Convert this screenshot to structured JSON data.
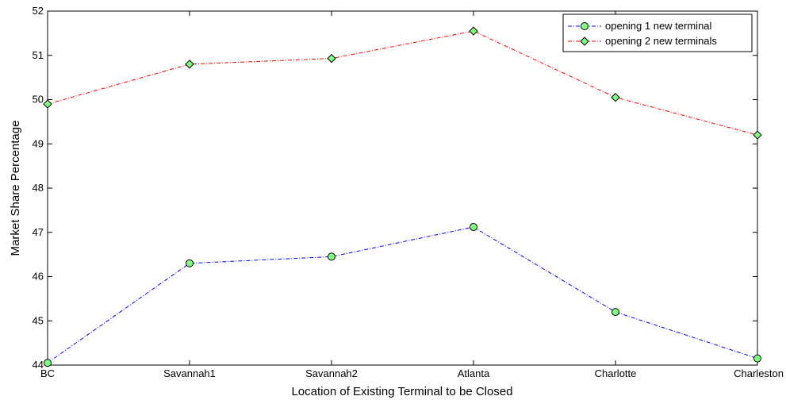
{
  "chart_data": {
    "type": "line",
    "title": "",
    "xlabel": "Location of Existing Terminal to be Closed",
    "ylabel": "Market Share Percentage",
    "categories": [
      "BC",
      "Savannah1",
      "Savannah2",
      "Atlanta",
      "Charlotte",
      "Charleston"
    ],
    "ylim": [
      44,
      52
    ],
    "yticks": [
      "44",
      "45",
      "46",
      "47",
      "48",
      "49",
      "50",
      "51",
      "52"
    ],
    "grid": false,
    "legend_position": "top-right",
    "series": [
      {
        "name": "opening 1 new terminal",
        "values": [
          44.05,
          46.3,
          46.45,
          47.12,
          45.2,
          44.15
        ],
        "line_color": "#0000ff",
        "marker": "circle",
        "marker_color": "#7fff7f"
      },
      {
        "name": "opening 2 new terminals",
        "values": [
          49.9,
          50.8,
          50.93,
          51.55,
          50.05,
          49.2
        ],
        "line_color": "#ff0000",
        "marker": "diamond",
        "marker_color": "#7fff7f"
      }
    ]
  }
}
